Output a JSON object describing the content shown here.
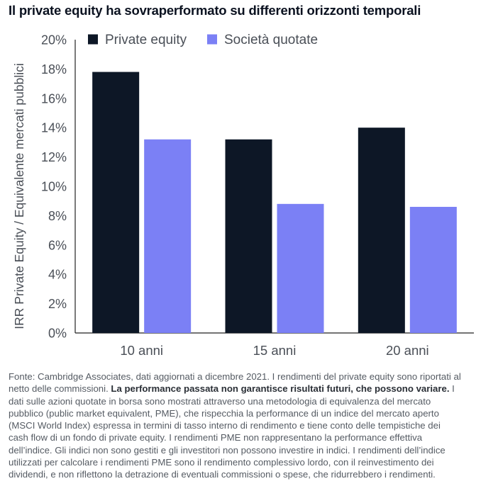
{
  "title": "Il private equity ha sovraperformato su differenti orizzonti temporali",
  "chart_data": {
    "type": "bar",
    "title": "Il private equity ha sovraperformato su differenti orizzonti temporali",
    "categories": [
      "10 anni",
      "15 anni",
      "20 anni"
    ],
    "series": [
      {
        "name": "Private equity",
        "values": [
          17.8,
          13.2,
          14.0
        ],
        "color": "#0d1726"
      },
      {
        "name": "Società quotate",
        "values": [
          13.2,
          8.8,
          8.6
        ],
        "color": "#7b80f5"
      }
    ],
    "ylabel": "IRR Private Equity / Equivalente mercati pubblici",
    "xlabel": "",
    "ylim": [
      0,
      20
    ],
    "yticks": [
      0,
      2,
      4,
      6,
      8,
      10,
      12,
      14,
      16,
      18,
      20
    ],
    "tick_suffix": "%",
    "legend": "top-left"
  },
  "footnote": {
    "part1": "Fonte: Cambridge Associates, dati aggiornati a dicembre 2021. I rendimenti del private equity sono riportati al netto delle commissioni. ",
    "bold": "La performance passata non garantisce risultati futuri, che possono variare.",
    "part2": " I dati sulle azioni quotate in borsa sono mostrati attraverso una metodologia di equivalenza del mercato pubblico (public market equivalent, PME), che rispecchia la performance di un indice del mercato aperto (MSCI World Index) espressa in termini di tasso interno di rendimento e tiene conto delle tempistiche dei cash flow di un fondo di private equity. I rendimenti PME non rappresentano la performance effettiva dell’indice. Gli indici non sono gestiti e gli investitori non possono investire in indici. I rendimenti dell’indice utilizzati per calcolare i rendimenti PME sono il rendimento complessivo lordo, con il reinvestimento dei dividendi, e non riflettono la detrazione di eventuali commissioni o spese, che ridurrebbero i rendimenti."
  }
}
